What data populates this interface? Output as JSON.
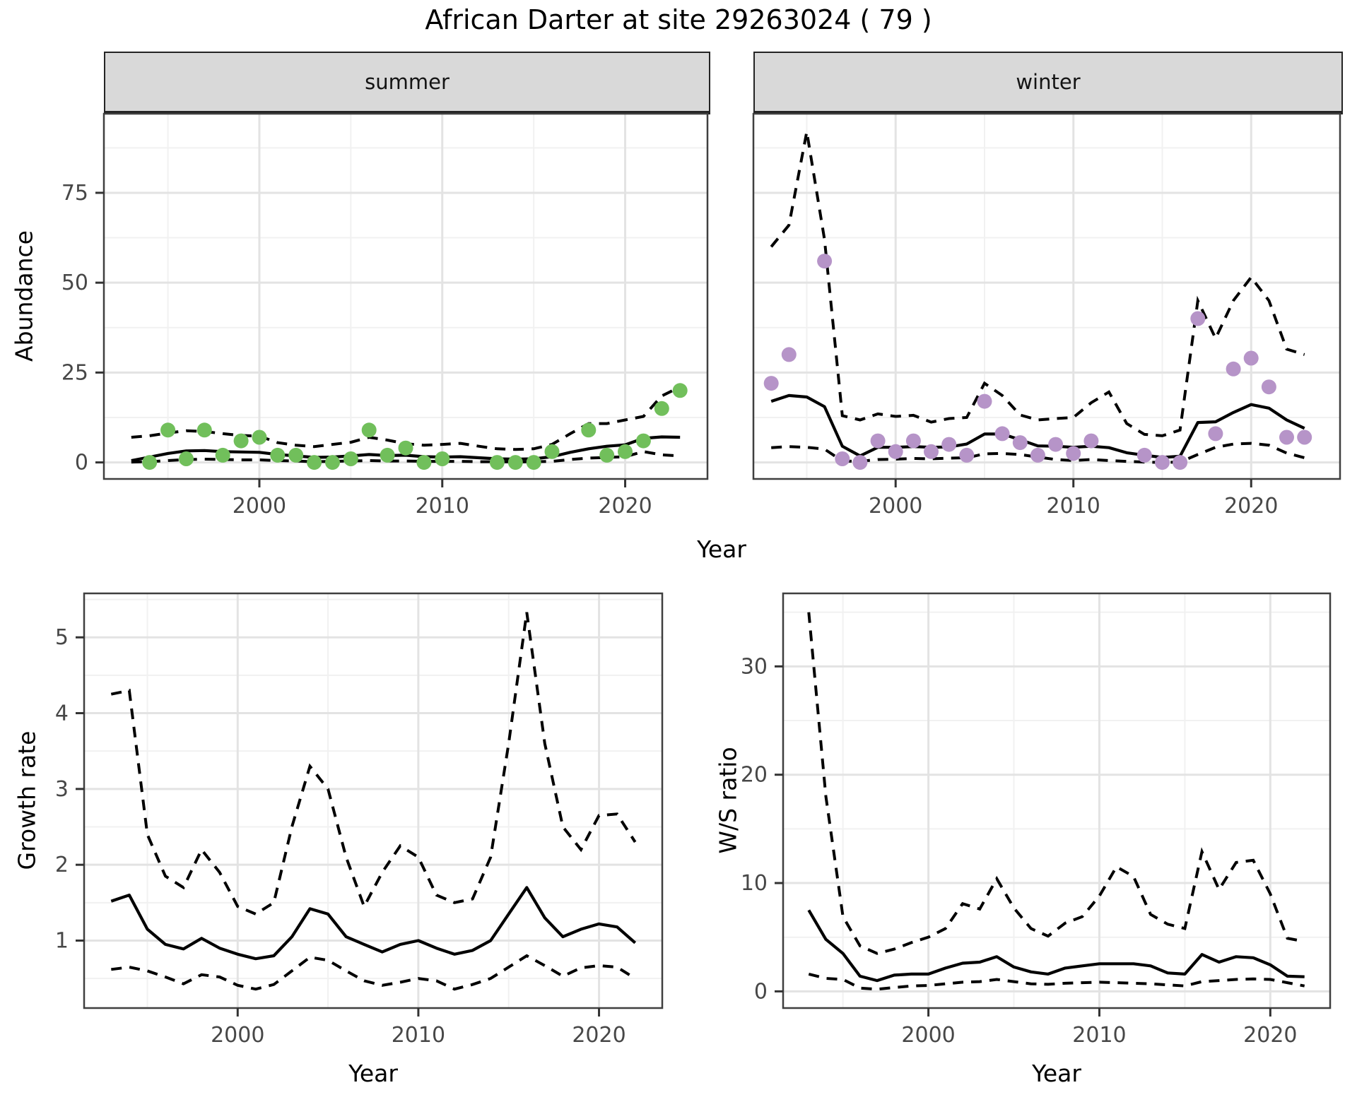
{
  "title": "African Darter at site 29263024 ( 79 )",
  "facets": {
    "summer": "summer",
    "winter": "winter"
  },
  "axes": {
    "abundance_label": "Abundance",
    "growth_label": "Growth rate",
    "ws_label": "W/S ratio",
    "year_label_top": "Year",
    "year_label_growth": "Year",
    "year_label_ws": "Year"
  },
  "colors": {
    "summer_points": "#71bf5b",
    "winter_points": "#b694c8",
    "line": "#000000",
    "grid_major": "#e3e3e3",
    "grid_minor": "#f1f1f1",
    "strip_bg": "#d9d9d9",
    "panel_border": "#3f3f3f",
    "tick_label": "#474747",
    "tick_mark": "#333333"
  },
  "chart_data": [
    {
      "id": "summer",
      "type": "line+scatter",
      "facet_label": "summer",
      "xlabel": "Year",
      "ylabel": "Abundance",
      "legend": "points = observed counts, solid = model mean, dashed = confidence band",
      "xlim": [
        1991.5,
        2024.5
      ],
      "ylim": [
        -4.6,
        97
      ],
      "x_ticks": [
        2000,
        2010,
        2020
      ],
      "x_minor_ticks": [
        1995,
        2005,
        2015
      ],
      "y_ticks": [
        0,
        25,
        50,
        75
      ],
      "y_minor_ticks": [
        12.5,
        37.5,
        62.5,
        87.5
      ],
      "point_color": "#71bf5b",
      "years": [
        1993,
        1994,
        1995,
        1996,
        1997,
        1998,
        1999,
        2000,
        2001,
        2002,
        2003,
        2004,
        2005,
        2006,
        2007,
        2008,
        2009,
        2010,
        2011,
        2012,
        2013,
        2014,
        2015,
        2016,
        2017,
        2018,
        2019,
        2020,
        2021,
        2022,
        2023
      ],
      "mean": [
        0.5,
        1.5,
        2.5,
        3.2,
        3.3,
        3.0,
        2.9,
        2.8,
        2.2,
        1.8,
        1.4,
        1.5,
        1.8,
        2.2,
        1.9,
        2.0,
        1.6,
        1.5,
        1.6,
        1.3,
        1.0,
        0.9,
        1.0,
        1.6,
        2.8,
        3.8,
        4.5,
        4.9,
        6.7,
        7.1,
        7.0
      ],
      "upper_ci": [
        7.0,
        7.4,
        8.2,
        8.8,
        8.6,
        8.0,
        7.5,
        7.3,
        5.5,
        4.8,
        4.4,
        5.0,
        5.6,
        7.0,
        6.2,
        5.2,
        4.8,
        5.0,
        5.3,
        4.5,
        3.8,
        3.6,
        3.8,
        5.0,
        8.0,
        10.8,
        10.8,
        11.8,
        12.8,
        18.5,
        21.0
      ],
      "lower_ci": [
        0.1,
        0.2,
        0.5,
        0.8,
        0.9,
        0.8,
        0.7,
        0.7,
        0.5,
        0.4,
        0.2,
        0.3,
        0.4,
        0.5,
        0.4,
        0.4,
        0.3,
        0.3,
        0.3,
        0.2,
        0.2,
        0.1,
        0.2,
        0.3,
        0.8,
        1.2,
        1.4,
        1.6,
        3.0,
        2.1,
        1.8
      ],
      "points": {
        "years": [
          1994,
          1995,
          1996,
          1997,
          1998,
          1999,
          2000,
          2001,
          2002,
          2003,
          2004,
          2005,
          2006,
          2007,
          2008,
          2009,
          2010,
          2013,
          2014,
          2015,
          2016,
          2018,
          2019,
          2020,
          2021,
          2022,
          2023
        ],
        "values": [
          0,
          9,
          1,
          9,
          2,
          6,
          7,
          2,
          2,
          0,
          0,
          1,
          9,
          2,
          4,
          0,
          1,
          0,
          0,
          0,
          3,
          9,
          2,
          3,
          6,
          15,
          20
        ]
      }
    },
    {
      "id": "winter",
      "type": "line+scatter",
      "facet_label": "winter",
      "xlabel": "Year",
      "ylabel": "Abundance",
      "legend": "points = observed counts, solid = model mean, dashed = confidence band",
      "xlim": [
        1992,
        2025
      ],
      "ylim": [
        -4.6,
        97
      ],
      "x_ticks": [
        2000,
        2010,
        2020
      ],
      "x_minor_ticks": [
        1995,
        2005,
        2015
      ],
      "y_ticks": [
        0,
        25,
        50,
        75
      ],
      "y_minor_ticks": [
        12.5,
        37.5,
        62.5,
        87.5
      ],
      "point_color": "#b694c8",
      "years": [
        1993,
        1994,
        1995,
        1996,
        1997,
        1998,
        1999,
        2000,
        2001,
        2002,
        2003,
        2004,
        2005,
        2006,
        2007,
        2008,
        2009,
        2010,
        2011,
        2012,
        2013,
        2014,
        2015,
        2016,
        2017,
        2018,
        2019,
        2020,
        2021,
        2022,
        2023
      ],
      "mean": [
        17.0,
        18.6,
        18.2,
        15.5,
        4.5,
        1.8,
        4.2,
        4.2,
        4.4,
        4.2,
        4.3,
        5.1,
        7.9,
        7.9,
        6.3,
        4.6,
        4.5,
        4.2,
        4.5,
        4.1,
        2.7,
        2.0,
        1.4,
        1.7,
        11.1,
        11.3,
        13.9,
        16.1,
        15.1,
        11.8,
        9.5
      ],
      "upper_ci": [
        60,
        66,
        92,
        62,
        13,
        11.8,
        13.5,
        12.8,
        13.1,
        11.2,
        12.2,
        12.5,
        22,
        18.6,
        13.2,
        11.8,
        12.2,
        12.5,
        16.6,
        19.6,
        10.8,
        7.8,
        7.4,
        9.0,
        45,
        34.5,
        45,
        51.5,
        45,
        31.5,
        30
      ],
      "lower_ci": [
        4.1,
        4.4,
        4.2,
        3.7,
        0.4,
        0.3,
        0.8,
        0.9,
        1.1,
        1.0,
        1.2,
        1.3,
        2.4,
        2.5,
        2.2,
        1.5,
        0.8,
        0.5,
        0.8,
        0.5,
        0.3,
        0.1,
        0.0,
        0.1,
        2.2,
        4.2,
        5.1,
        5.3,
        4.8,
        2.6,
        1.3
      ],
      "points": {
        "years": [
          1993,
          1994,
          1996,
          1997,
          1998,
          1999,
          2000,
          2001,
          2002,
          2003,
          2004,
          2005,
          2006,
          2007,
          2008,
          2009,
          2010,
          2011,
          2014,
          2015,
          2016,
          2017,
          2018,
          2019,
          2020,
          2021,
          2022,
          2023
        ],
        "values": [
          22,
          30,
          56,
          1,
          0,
          6,
          3,
          6,
          3,
          5,
          2,
          17,
          8,
          5.5,
          2,
          5,
          2.5,
          6,
          2,
          0,
          0,
          40,
          8,
          26,
          29,
          21,
          7,
          7
        ]
      }
    },
    {
      "id": "growth",
      "type": "line",
      "xlabel": "Year",
      "ylabel": "Growth rate",
      "legend": "solid = growth rate, dashed = confidence band",
      "xlim": [
        1991.5,
        2023.5
      ],
      "ylim": [
        0.11,
        5.58
      ],
      "x_ticks": [
        2000,
        2010,
        2020
      ],
      "x_minor_ticks": [
        1995,
        2005,
        2015
      ],
      "y_ticks": [
        1,
        2,
        3,
        4,
        5
      ],
      "y_minor_ticks": [
        0.5,
        1.5,
        2.5,
        3.5,
        4.5,
        5.5
      ],
      "years": [
        1993,
        1994,
        1995,
        1996,
        1997,
        1998,
        1999,
        2000,
        2001,
        2002,
        2003,
        2004,
        2005,
        2006,
        2007,
        2008,
        2009,
        2010,
        2011,
        2012,
        2013,
        2014,
        2015,
        2016,
        2017,
        2018,
        2019,
        2020,
        2021,
        2022
      ],
      "mean": [
        1.52,
        1.6,
        1.15,
        0.95,
        0.89,
        1.03,
        0.9,
        0.82,
        0.76,
        0.8,
        1.05,
        1.42,
        1.35,
        1.05,
        0.95,
        0.85,
        0.95,
        1.0,
        0.9,
        0.82,
        0.87,
        1.0,
        1.35,
        1.7,
        1.3,
        1.05,
        1.15,
        1.22,
        1.18,
        0.97
      ],
      "upper_ci": [
        4.25,
        4.3,
        2.4,
        1.85,
        1.7,
        2.2,
        1.9,
        1.45,
        1.35,
        1.5,
        2.5,
        3.3,
        3.0,
        2.1,
        1.45,
        1.9,
        2.25,
        2.1,
        1.6,
        1.5,
        1.55,
        2.1,
        3.6,
        5.33,
        3.6,
        2.5,
        2.2,
        2.65,
        2.67,
        2.3
      ],
      "lower_ci": [
        0.62,
        0.65,
        0.6,
        0.52,
        0.43,
        0.55,
        0.52,
        0.41,
        0.36,
        0.42,
        0.6,
        0.78,
        0.74,
        0.6,
        0.47,
        0.41,
        0.45,
        0.5,
        0.47,
        0.36,
        0.42,
        0.5,
        0.65,
        0.8,
        0.67,
        0.53,
        0.64,
        0.67,
        0.65,
        0.5
      ]
    },
    {
      "id": "ws",
      "type": "line",
      "xlabel": "Year",
      "ylabel": "W/S ratio",
      "legend": "solid = winter/summer ratio, dashed = confidence band",
      "xlim": [
        1991.5,
        2023.5
      ],
      "ylim": [
        -1.54,
        36.74
      ],
      "x_ticks": [
        2000,
        2010,
        2020
      ],
      "x_minor_ticks": [
        1995,
        2005,
        2015
      ],
      "y_ticks": [
        0,
        10,
        20,
        30
      ],
      "y_minor_ticks": [
        5,
        15,
        25,
        35
      ],
      "years": [
        1993,
        1994,
        1995,
        1996,
        1997,
        1998,
        1999,
        2000,
        2001,
        2002,
        2003,
        2004,
        2005,
        2006,
        2007,
        2008,
        2009,
        2010,
        2011,
        2012,
        2013,
        2014,
        2015,
        2016,
        2017,
        2018,
        2019,
        2020,
        2021,
        2022
      ],
      "mean": [
        7.5,
        4.8,
        3.5,
        1.4,
        1.0,
        1.5,
        1.6,
        1.6,
        2.15,
        2.6,
        2.7,
        3.2,
        2.25,
        1.8,
        1.6,
        2.15,
        2.35,
        2.55,
        2.55,
        2.55,
        2.35,
        1.7,
        1.6,
        3.4,
        2.7,
        3.2,
        3.1,
        2.45,
        1.4,
        1.35
      ],
      "upper_ci": [
        35,
        18,
        6.9,
        4.2,
        3.5,
        3.9,
        4.5,
        5.0,
        5.8,
        8.1,
        7.6,
        10.4,
        7.7,
        5.8,
        5.1,
        6.3,
        6.9,
        8.8,
        11.5,
        10.6,
        7.1,
        6.2,
        5.8,
        12.9,
        9.4,
        11.9,
        12.1,
        9.0,
        4.9,
        4.6
      ],
      "lower_ci": [
        1.6,
        1.2,
        1.1,
        0.3,
        0.2,
        0.35,
        0.5,
        0.55,
        0.7,
        0.85,
        0.9,
        1.1,
        0.9,
        0.7,
        0.65,
        0.75,
        0.8,
        0.85,
        0.8,
        0.75,
        0.7,
        0.6,
        0.5,
        0.9,
        1.0,
        1.1,
        1.15,
        1.1,
        0.8,
        0.5
      ]
    }
  ]
}
